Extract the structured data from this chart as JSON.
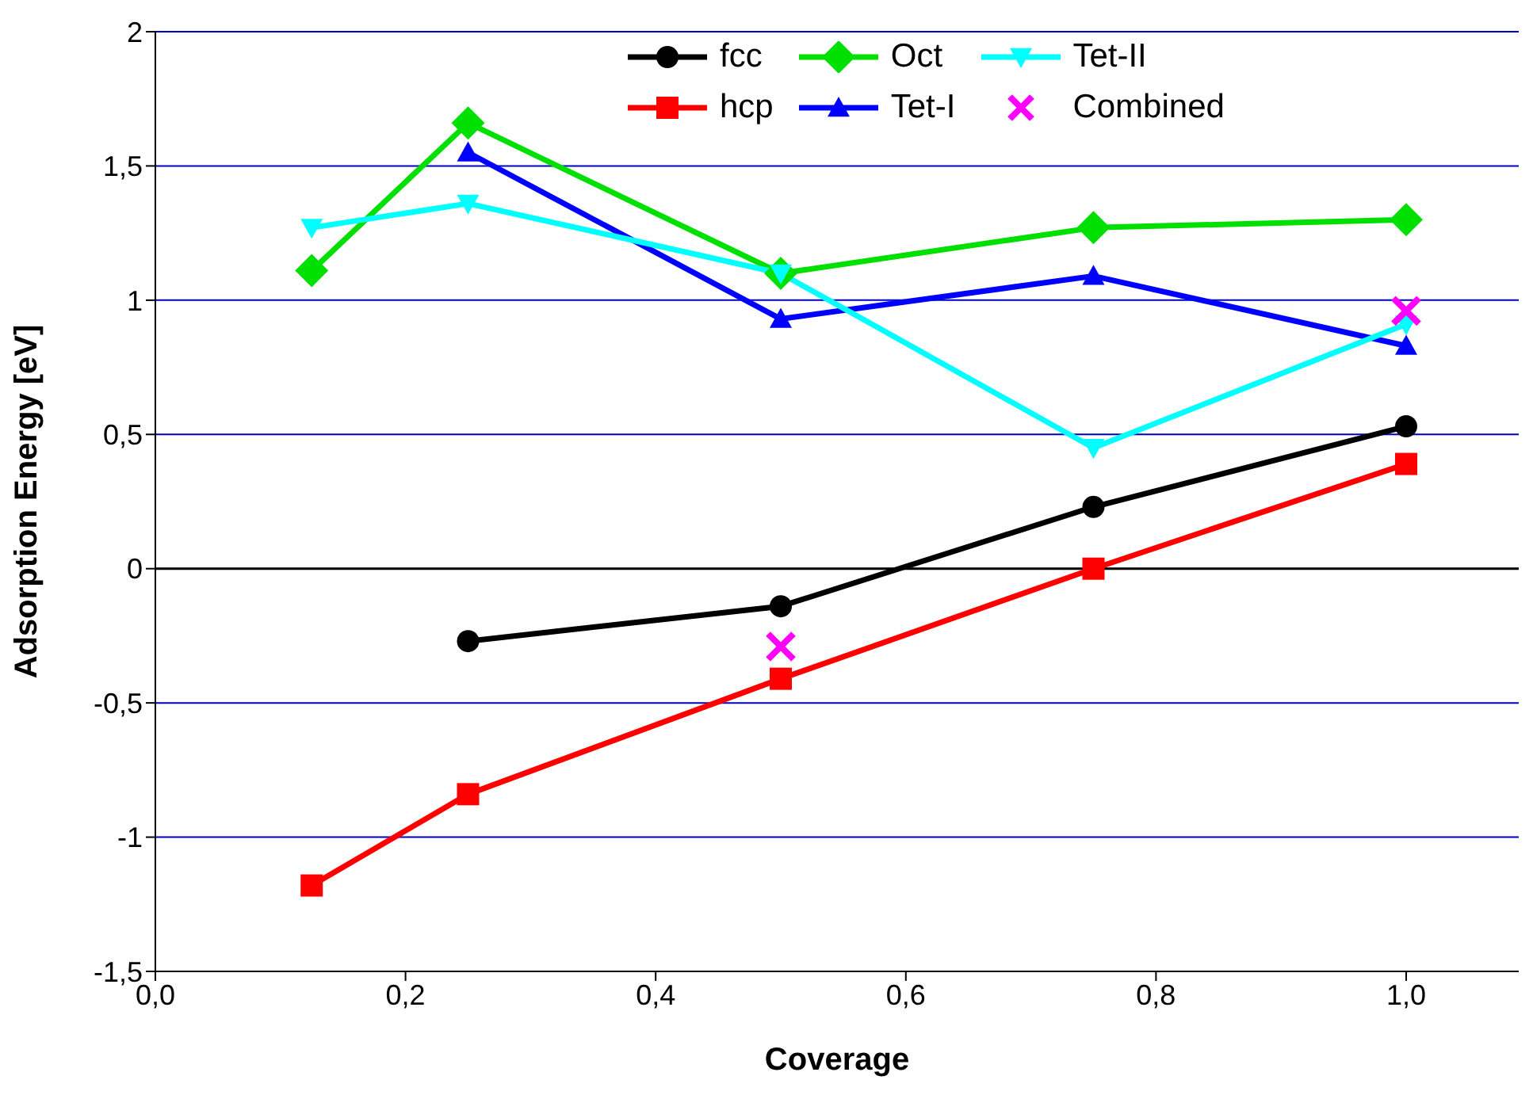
{
  "chart_data": {
    "type": "line",
    "xlabel": "Coverage",
    "ylabel": "Adsorption Energy [eV]",
    "xlim": [
      0,
      1.09
    ],
    "xticks": [
      {
        "value": 0,
        "label": "0,0"
      },
      {
        "value": 0.2,
        "label": "0,2"
      },
      {
        "value": 0.4,
        "label": "0,4"
      },
      {
        "value": 0.6,
        "label": "0,6"
      },
      {
        "value": 0.8,
        "label": "0,8"
      },
      {
        "value": 1,
        "label": "1,0"
      }
    ],
    "ylim": [
      -1.5,
      2
    ],
    "yticks": [
      {
        "value": -1.5,
        "label": "-1,5"
      },
      -1,
      {
        "value": -0.5,
        "label": "-0,5"
      },
      0,
      {
        "value": 0.5,
        "label": "0,5"
      },
      1,
      {
        "value": 1.5,
        "label": "1,5"
      },
      2
    ],
    "grid": "y",
    "legend": "top",
    "line_style": "solid",
    "ref_lines": [
      {
        "axis": "y",
        "value": 0,
        "color": "#000000"
      }
    ],
    "series": [
      {
        "name": "fcc",
        "color": "#000000",
        "marker": "circle",
        "x": [
          0.25,
          0.5,
          0.75,
          1
        ],
        "values": [
          -0.27,
          -0.14,
          0.23,
          0.53
        ]
      },
      {
        "name": "hcp",
        "color": "#ff0000",
        "marker": "square",
        "x": [
          0.125,
          0.25,
          0.5,
          0.75,
          1
        ],
        "values": [
          -1.18,
          -0.84,
          -0.41,
          0,
          0.39
        ]
      },
      {
        "name": "Oct",
        "color": "#00e000",
        "marker": "diamond",
        "x": [
          0.125,
          0.25,
          0.5,
          0.75,
          1
        ],
        "values": [
          1.11,
          1.66,
          1.1,
          1.27,
          1.3
        ]
      },
      {
        "name": "Tet-I",
        "color": "#0000ff",
        "marker": "triangle",
        "x": [
          0.25,
          0.5,
          0.75,
          1
        ],
        "values": [
          1.55,
          0.93,
          1.09,
          0.83
        ]
      },
      {
        "name": "Tet-II",
        "color": "#00ffff",
        "marker": "triangle-down",
        "x": [
          0.125,
          0.25,
          0.5,
          0.75,
          1
        ],
        "values": [
          1.27,
          1.36,
          1.1,
          0.45,
          0.91
        ]
      },
      {
        "name": "Combined",
        "type": "scatter",
        "color": "#ff00ff",
        "marker": "cross",
        "x": [
          0.5,
          1
        ],
        "values": [
          -0.29,
          0.96
        ]
      }
    ]
  }
}
